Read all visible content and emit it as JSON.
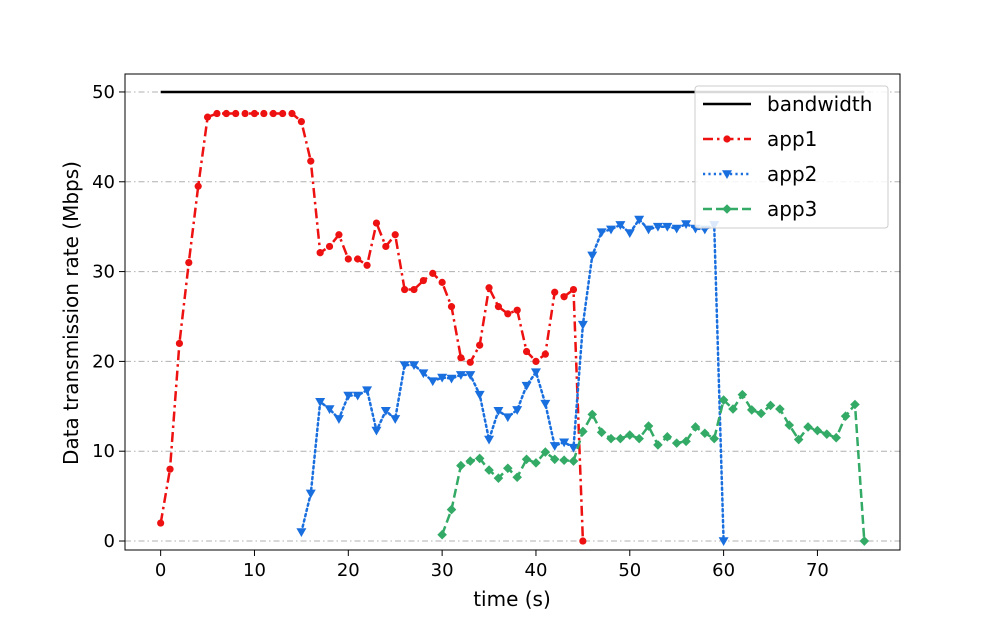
{
  "chart_data": {
    "type": "line",
    "xlabel": "time (s)",
    "ylabel": "Data transmission rate (Mbps)",
    "xlim": [
      -3.8,
      78.8
    ],
    "ylim": [
      -1,
      52
    ],
    "xticks": [
      0,
      10,
      20,
      30,
      40,
      50,
      60,
      70
    ],
    "yticks": [
      0,
      10,
      20,
      30,
      40,
      50
    ],
    "grid": "horizontal dash-dot",
    "legend": "top-right",
    "series": [
      {
        "name": "bandwidth",
        "color": "#000000",
        "line": "solid",
        "marker": "none",
        "x": [
          0,
          45,
          60,
          75
        ],
        "y": [
          50,
          50,
          50,
          50
        ]
      },
      {
        "name": "app1",
        "color": "#ee1111",
        "line": "dashdot",
        "marker": "circle",
        "x": [
          0,
          1,
          2,
          3,
          4,
          5,
          6,
          7,
          8,
          9,
          10,
          11,
          12,
          13,
          14,
          15,
          16,
          17,
          18,
          19,
          20,
          21,
          22,
          23,
          24,
          25,
          26,
          27,
          28,
          29,
          30,
          31,
          32,
          33,
          34,
          35,
          36,
          37,
          38,
          39,
          40,
          41,
          42,
          43,
          44,
          45
        ],
        "y": [
          2,
          8,
          22,
          31,
          39.5,
          47.2,
          47.6,
          47.6,
          47.6,
          47.6,
          47.6,
          47.6,
          47.6,
          47.6,
          47.6,
          46.7,
          42.3,
          32.1,
          32.8,
          34.1,
          31.4,
          31.4,
          30.7,
          35.4,
          32.8,
          34.1,
          28,
          28,
          29,
          29.8,
          28.8,
          26.1,
          20.4,
          19.9,
          21.8,
          28.2,
          26.1,
          25.3,
          25.7,
          21.1,
          20,
          20.8,
          27.7,
          27.2,
          28,
          0
        ]
      },
      {
        "name": "app2",
        "color": "#1a6fdf",
        "line": "dotted",
        "marker": "triangle-down",
        "x": [
          15,
          16,
          17,
          18,
          19,
          20,
          21,
          22,
          23,
          24,
          25,
          26,
          27,
          28,
          29,
          30,
          31,
          32,
          33,
          34,
          35,
          36,
          37,
          38,
          39,
          40,
          41,
          42,
          43,
          44,
          45,
          46,
          47,
          48,
          49,
          50,
          51,
          52,
          53,
          54,
          55,
          56,
          57,
          58,
          59,
          60
        ],
        "y": [
          1,
          5.3,
          15.5,
          14.7,
          13.6,
          16.2,
          16.2,
          16.8,
          12.3,
          14.5,
          13.6,
          19.6,
          19.6,
          18.7,
          17.8,
          18.2,
          18.1,
          18.5,
          18.5,
          16.3,
          11.3,
          14.5,
          13.8,
          14.6,
          17.3,
          18.8,
          15.3,
          10.6,
          11,
          10.4,
          24.1,
          31.8,
          34.4,
          34.7,
          35.2,
          34.3,
          35.8,
          34.7,
          35,
          35,
          34.8,
          35.3,
          34.8,
          34.7,
          35.2,
          0
        ]
      },
      {
        "name": "app3",
        "color": "#33aa66",
        "line": "dashed",
        "marker": "diamond",
        "x": [
          30,
          31,
          32,
          33,
          34,
          35,
          36,
          37,
          38,
          39,
          40,
          41,
          42,
          43,
          44,
          45,
          46,
          47,
          48,
          49,
          50,
          51,
          52,
          53,
          54,
          55,
          56,
          57,
          58,
          59,
          60,
          61,
          62,
          63,
          64,
          65,
          66,
          67,
          68,
          69,
          70,
          71,
          72,
          73,
          74,
          75
        ],
        "y": [
          0.7,
          3.5,
          8.4,
          8.9,
          9.2,
          7.9,
          7.0,
          8.1,
          7.1,
          9.1,
          8.7,
          9.9,
          9.1,
          9.0,
          8.9,
          12.2,
          14.1,
          12.1,
          11.4,
          11.4,
          11.8,
          11.4,
          12.8,
          10.7,
          11.6,
          10.9,
          11.1,
          12.7,
          12.0,
          11.4,
          15.7,
          14.7,
          16.3,
          14.6,
          14.2,
          15.1,
          14.7,
          12.9,
          11.3,
          12.7,
          12.3,
          11.9,
          11.5,
          13.9,
          15.2,
          0
        ]
      }
    ]
  }
}
